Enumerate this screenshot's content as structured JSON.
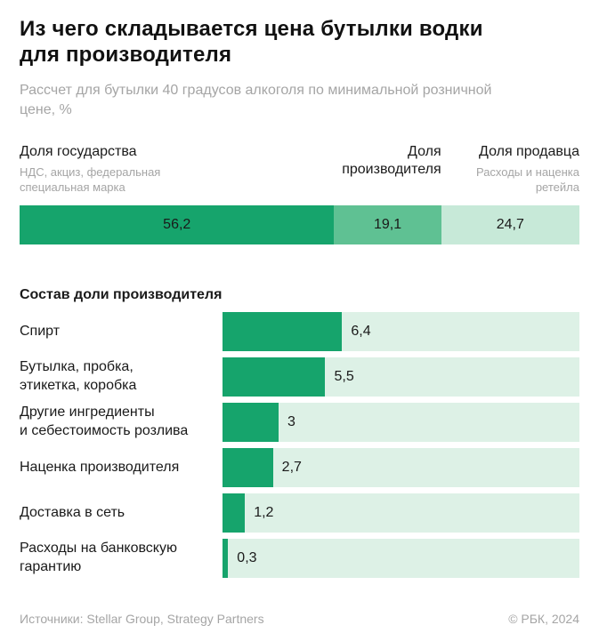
{
  "header": {
    "title": "Из чего складывается цена бутылки водки\nдля производителя",
    "subtitle": "Рассчет для бутылки 40 градусов алкоголя по минимальной розничной\nцене, %"
  },
  "colors": {
    "dark_green": "#16a46c",
    "medium_green": "#5fc193",
    "light_green": "#c7e9d8",
    "track_green": "#ddf1e6",
    "gray_text": "#a5a5a5",
    "black_text": "#1a1a1a"
  },
  "stacked": {
    "segments": [
      {
        "key": "state",
        "label": "Доля государства",
        "sublabel": "НДС, акциз, федеральная специальная марка",
        "sub_max_width": 212,
        "value": "56,2",
        "num": 56.2,
        "color": "#16a46c"
      },
      {
        "key": "producer",
        "label": "Доля производителя",
        "sublabel": "",
        "value": "19,1",
        "num": 19.1,
        "color": "#5fc193"
      },
      {
        "key": "seller",
        "label": "Доля продавца",
        "sublabel": "Расходы и наценка ретейла",
        "value": "24,7",
        "num": 24.7,
        "color": "#c7e9d8"
      }
    ]
  },
  "breakdown": {
    "heading": "Состав доли производителя",
    "scale_max": 19.1,
    "bar_color": "#16a46c",
    "track_color": "#ddf1e6",
    "rows": [
      {
        "label": "Спирт",
        "value": "6,4",
        "num": 6.4
      },
      {
        "label": "Бутылка, пробка,\nэтикетка, коробка",
        "value": "5,5",
        "num": 5.5
      },
      {
        "label": "Другие ингредиенты\nи себестоимость розлива",
        "value": "3",
        "num": 3
      },
      {
        "label": "Наценка производителя",
        "value": "2,7",
        "num": 2.7
      },
      {
        "label": "Доставка в сеть",
        "value": "1,2",
        "num": 1.2
      },
      {
        "label": "Расходы на банковскую\nгарантию",
        "value": "0,3",
        "num": 0.3
      }
    ]
  },
  "footer": {
    "sources": "Источники: Stellar Group, Strategy Partners",
    "copyright": "© РБК, 2024"
  },
  "chart_data": [
    {
      "type": "bar",
      "subtype": "stacked-horizontal",
      "title": "Из чего складывается цена бутылки водки для производителя",
      "subtitle": "Рассчет для бутылки 40 градусов алкоголя по минимальной розничной цене, %",
      "categories": [
        "Доля государства (НДС, акциз, федеральная специальная марка)",
        "Доля производителя",
        "Доля продавца (Расходы и наценка ретейла)"
      ],
      "values": [
        56.2,
        19.1,
        24.7
      ],
      "unit": "%",
      "xlim": [
        0,
        100
      ],
      "grid": false,
      "legend_position": "above-bar"
    },
    {
      "type": "bar",
      "subtype": "horizontal",
      "title": "Состав доли производителя",
      "categories": [
        "Спирт",
        "Бутылка, пробка, этикетка, коробка",
        "Другие ингредиенты и себестоимость розлива",
        "Наценка производителя",
        "Доставка в сеть",
        "Расходы на банковскую гарантию"
      ],
      "values": [
        6.4,
        5.5,
        3,
        2.7,
        1.2,
        0.3
      ],
      "unit": "% от розничной цены",
      "xlim": [
        0,
        19.1
      ],
      "grid": false,
      "data_labels": true
    }
  ]
}
